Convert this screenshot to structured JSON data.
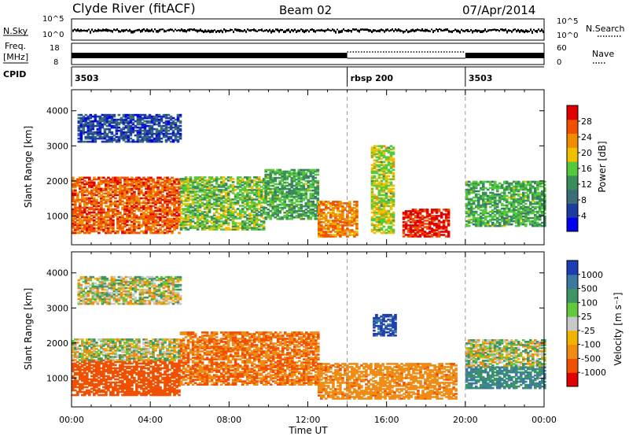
{
  "header": {
    "station": "Clyde River (fitACF)",
    "beam": "Beam 02",
    "date": "07/Apr/2014"
  },
  "status_panel": {
    "nsky_label": "N.Sky",
    "nsearch_label": "N.Search",
    "left_ticks_top": [
      "10^5",
      "10^0"
    ],
    "right_ticks_top": [
      "10^5",
      "10^0"
    ],
    "freq_label": "Freq.",
    "freq_unit": "[MHz]",
    "freq_ticks": [
      "18",
      "8"
    ],
    "nave_label": "Nave",
    "nave_ticks": [
      "60",
      "0"
    ],
    "cpid_label": "CPID",
    "cpid_segments": [
      {
        "label": "3503",
        "start_h": 0,
        "end_h": 14
      },
      {
        "label": "rbsp  200",
        "start_h": 14,
        "end_h": 20
      },
      {
        "label": "3503",
        "start_h": 20,
        "end_h": 24
      }
    ]
  },
  "chart_data": [
    {
      "type": "heatmap",
      "name": "Power",
      "ylabel": "Slant Range [km]",
      "xlim_hours": [
        0,
        24
      ],
      "ylim_km": [
        180,
        4600
      ],
      "yticks": [
        1000,
        2000,
        3000,
        4000
      ],
      "colorbar": {
        "label": "Power [dB]",
        "min": 0,
        "max": 32,
        "ticks": [
          4,
          8,
          12,
          16,
          20,
          24,
          28
        ],
        "colors": [
          "#0000ee",
          "#1e3ca0",
          "#3c6e78",
          "#3a8c58",
          "#55c83c",
          "#f0c000",
          "#f08c00",
          "#f05000",
          "#e00000"
        ]
      },
      "regions": [
        {
          "t0": 0.0,
          "t1": 5.5,
          "r0": 500,
          "r1": 2100,
          "value": 26
        },
        {
          "t0": 0.3,
          "t1": 5.5,
          "r0": 3100,
          "r1": 3900,
          "value": 6
        },
        {
          "t0": 5.5,
          "t1": 9.8,
          "r0": 600,
          "r1": 2100,
          "value": 16
        },
        {
          "t0": 9.8,
          "t1": 12.5,
          "r0": 900,
          "r1": 2300,
          "value": 14
        },
        {
          "t0": 12.5,
          "t1": 14.5,
          "r0": 400,
          "r1": 1400,
          "value": 24
        },
        {
          "t0": 15.2,
          "t1": 16.4,
          "r0": 500,
          "r1": 3000,
          "value": 18
        },
        {
          "t0": 16.8,
          "t1": 19.2,
          "r0": 400,
          "r1": 1200,
          "value": 30
        },
        {
          "t0": 20.0,
          "t1": 24.0,
          "r0": 700,
          "r1": 2000,
          "value": 14
        }
      ]
    },
    {
      "type": "heatmap",
      "name": "Velocity",
      "ylabel": "Slant Range [km]",
      "xlabel": "Time UT",
      "xlim_hours": [
        0,
        24
      ],
      "ylim_km": [
        180,
        4600
      ],
      "xticks": [
        "00:00",
        "04:00",
        "08:00",
        "12:00",
        "16:00",
        "20:00",
        "00:00"
      ],
      "yticks": [
        1000,
        2000,
        3000,
        4000
      ],
      "colorbar": {
        "label": "Velocity [m s⁻¹]",
        "ticks": [
          "1000",
          "500",
          "100",
          "25",
          "-25",
          "-100",
          "-500",
          "-1000"
        ],
        "colors": [
          "#1e3cb4",
          "#3c78a0",
          "#3c9664",
          "#64c83c",
          "#c8c8c8",
          "#f0b400",
          "#f08c14",
          "#f05000",
          "#e00000"
        ]
      },
      "regions": [
        {
          "t0": 0.0,
          "t1": 5.5,
          "r0": 500,
          "r1": 1500,
          "value": -500
        },
        {
          "t0": 0.0,
          "t1": 5.5,
          "r0": 1500,
          "r1": 2100,
          "value": 0
        },
        {
          "t0": 0.3,
          "t1": 5.5,
          "r0": 3100,
          "r1": 3900,
          "value": 0
        },
        {
          "t0": 5.5,
          "t1": 12.5,
          "r0": 800,
          "r1": 2300,
          "value": -300
        },
        {
          "t0": 12.5,
          "t1": 19.5,
          "r0": 400,
          "r1": 1400,
          "value": -200
        },
        {
          "t0": 15.3,
          "t1": 16.4,
          "r0": 2200,
          "r1": 2800,
          "value": 800
        },
        {
          "t0": 20.0,
          "t1": 24.0,
          "r0": 1300,
          "r1": 2100,
          "value": 0
        },
        {
          "t0": 20.0,
          "t1": 24.0,
          "r0": 700,
          "r1": 1300,
          "value": 300
        }
      ]
    }
  ]
}
